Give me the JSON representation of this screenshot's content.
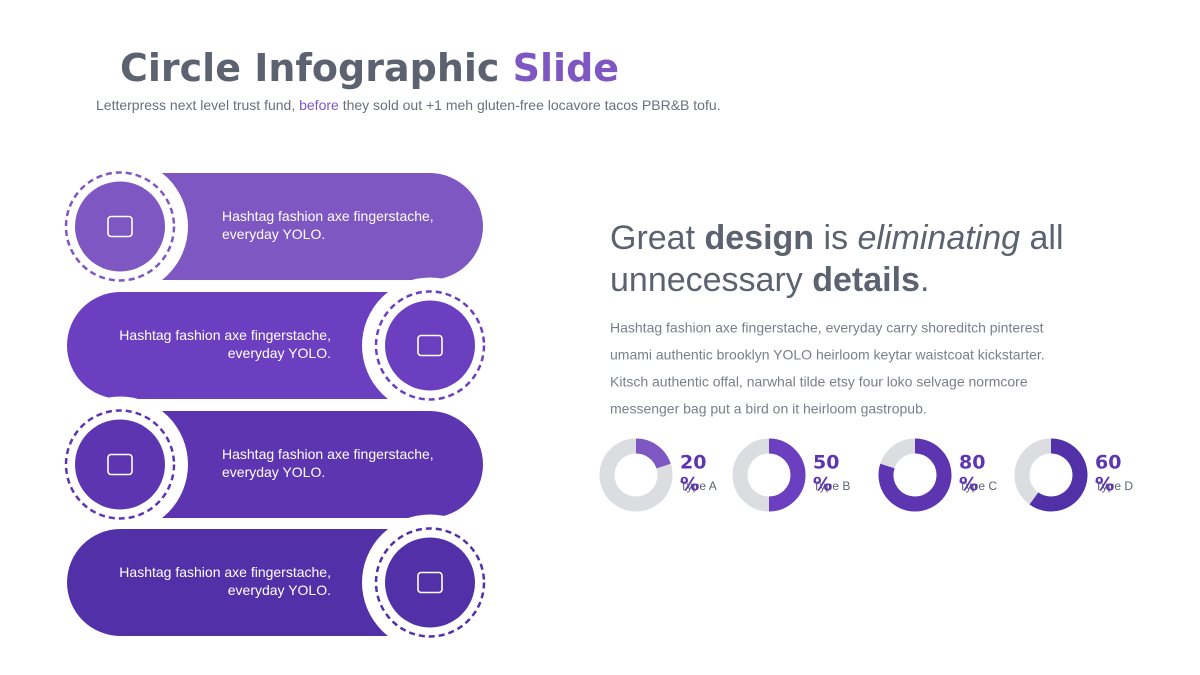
{
  "header": {
    "title": [
      "Circle Infographic ",
      "Slide"
    ],
    "subtitle": [
      "Letterpress next level trust fund, ",
      "before",
      " they sold out +1 meh gluten-free locavore tacos PBR&B tofu."
    ]
  },
  "items": [
    {
      "lines": [
        "Hashtag fashion axe fingerstache,",
        "everyday YOLO."
      ]
    },
    {
      "lines": [
        "Hashtag fashion axe fingerstache,",
        "everyday YOLO."
      ]
    },
    {
      "lines": [
        "Hashtag fashion axe fingerstache,",
        "everyday YOLO."
      ]
    },
    {
      "lines": [
        "Hashtag fashion axe fingerstache,",
        "everyday YOLO."
      ]
    }
  ],
  "quote": {
    "line1": [
      "Great ",
      "design",
      " is ",
      "eliminating",
      " all"
    ],
    "line2": [
      "unnecessary ",
      "details",
      "."
    ]
  },
  "paragraph": [
    "Hashtag fashion axe fingerstache, everyday carry shoreditch pinterest",
    "umami authentic brooklyn YOLO heirloom keytar waistcoat kickstarter.",
    "Kitsch authentic offal, narwhal tilde etsy four loko selvage normcore",
    "messenger bag put a bird on it heirloom gastropub."
  ],
  "donuts": [
    {
      "value": 20,
      "unit": "%",
      "label": "Type A",
      "color": "#7e57c2"
    },
    {
      "value": 50,
      "unit": "%",
      "label": "Type B",
      "color": "#6c3fc0"
    },
    {
      "value": 80,
      "unit": "%",
      "label": "Type C",
      "color": "#5e35b1"
    },
    {
      "value": 60,
      "unit": "%",
      "label": "Type D",
      "color": "#5230a8"
    }
  ]
}
